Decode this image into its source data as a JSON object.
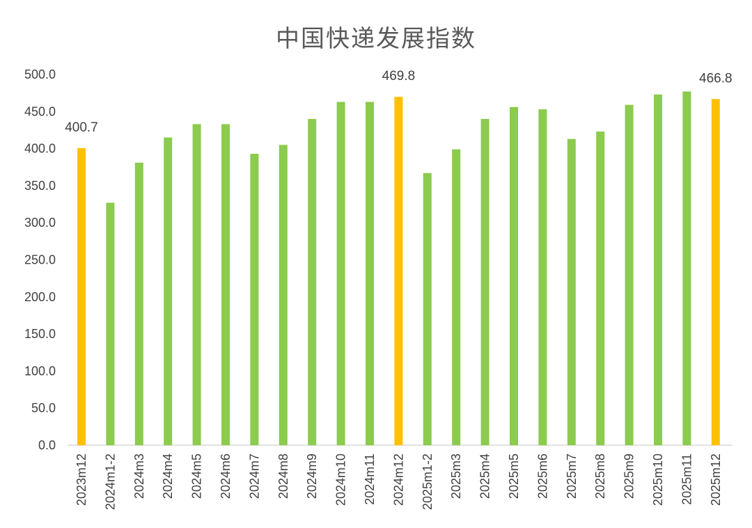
{
  "chart_data": {
    "type": "bar",
    "title": "中国快递发展指数",
    "xlabel": "",
    "ylabel": "",
    "ylim": [
      0,
      500
    ],
    "yticks": [
      "0.0",
      "50.0",
      "100.0",
      "150.0",
      "200.0",
      "250.0",
      "300.0",
      "350.0",
      "400.0",
      "450.0",
      "500.0"
    ],
    "grid": false,
    "categories": [
      "2023m12",
      "2024m1-2",
      "2024m3",
      "2024m4",
      "2024m5",
      "2024m6",
      "2024m7",
      "2024m8",
      "2024m9",
      "2024m10",
      "2024m11",
      "2024m12",
      "2025m1-2",
      "2025m3",
      "2025m4",
      "2025m5",
      "2025m6",
      "2025m7",
      "2025m8",
      "2025m9",
      "2025m10",
      "2025m11",
      "2025m12"
    ],
    "values": [
      400.7,
      327,
      381,
      415,
      433,
      433,
      393,
      405,
      440,
      463,
      463,
      469.8,
      367,
      399,
      440,
      456,
      453,
      413,
      423,
      459,
      473,
      477,
      466.8
    ],
    "highlighted": [
      "2023m12",
      "2024m12",
      "2025m12"
    ],
    "data_labels": {
      "2023m12": "400.7",
      "2024m12": "469.8",
      "2025m12": "466.8"
    },
    "colors": {
      "default": "#8BCB4E",
      "highlight": "#FFC000",
      "axis": "#D9D9D9"
    }
  }
}
